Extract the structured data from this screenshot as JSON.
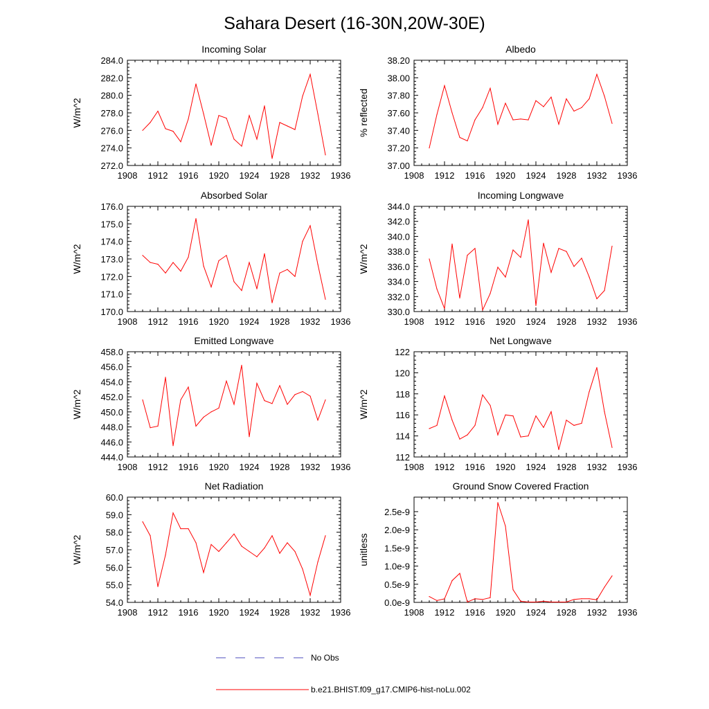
{
  "title": "Sahara Desert (16-30N,20W-30E)",
  "legend": {
    "entries": [
      {
        "label": "No Obs",
        "color": "#4b4bbd",
        "style": "dashed"
      },
      {
        "label": "b.e21.BHIST.f09_g17.CMIP6-hist-noLu.002",
        "color": "#ff0000",
        "style": "solid"
      }
    ]
  },
  "chart_data": [
    {
      "type": "line",
      "title": "Incoming Solar",
      "ylabel": "W/m^2",
      "xlim": [
        1908,
        1936
      ],
      "ylim": [
        272,
        284
      ],
      "xticks": [
        "1908",
        "1912",
        "1916",
        "1920",
        "1924",
        "1928",
        "1932",
        "1936"
      ],
      "yticks": [
        "272.0",
        "274.0",
        "276.0",
        "278.0",
        "280.0",
        "282.0",
        "284.0"
      ],
      "series": [
        {
          "color": "#ff0000",
          "x": [
            1910,
            1911,
            1912,
            1913,
            1914,
            1915,
            1916,
            1917,
            1918,
            1919,
            1920,
            1921,
            1922,
            1923,
            1924,
            1925,
            1926,
            1927,
            1928,
            1929,
            1930,
            1931,
            1932,
            1933,
            1934
          ],
          "y": [
            276.0,
            276.9,
            278.2,
            276.2,
            275.9,
            274.7,
            277.3,
            281.3,
            277.9,
            274.3,
            277.7,
            277.4,
            275.0,
            274.2,
            277.7,
            275.0,
            278.8,
            272.8,
            276.9,
            276.5,
            276.1,
            279.9,
            282.4,
            277.9,
            273.2
          ]
        }
      ]
    },
    {
      "type": "line",
      "title": "Albedo",
      "ylabel": "% reflected",
      "xlim": [
        1908,
        1936
      ],
      "ylim": [
        37.0,
        38.2
      ],
      "xticks": [
        "1908",
        "1912",
        "1916",
        "1920",
        "1924",
        "1928",
        "1932",
        "1936"
      ],
      "yticks": [
        "37.00",
        "37.20",
        "37.40",
        "37.60",
        "37.80",
        "38.00",
        "38.20"
      ],
      "series": [
        {
          "color": "#ff0000",
          "x": [
            1910,
            1911,
            1912,
            1913,
            1914,
            1915,
            1916,
            1917,
            1918,
            1919,
            1920,
            1921,
            1922,
            1923,
            1924,
            1925,
            1926,
            1927,
            1928,
            1929,
            1930,
            1931,
            1932,
            1933,
            1934
          ],
          "y": [
            37.2,
            37.58,
            37.91,
            37.6,
            37.32,
            37.28,
            37.52,
            37.66,
            37.88,
            37.47,
            37.71,
            37.52,
            37.53,
            37.52,
            37.74,
            37.67,
            37.78,
            37.47,
            37.76,
            37.62,
            37.66,
            37.76,
            38.04,
            37.79,
            37.48
          ]
        }
      ]
    },
    {
      "type": "line",
      "title": "Absorbed Solar",
      "ylabel": "W/m^2",
      "xlim": [
        1908,
        1936
      ],
      "ylim": [
        170,
        176
      ],
      "xticks": [
        "1908",
        "1912",
        "1916",
        "1920",
        "1924",
        "1928",
        "1932",
        "1936"
      ],
      "yticks": [
        "170.0",
        "171.0",
        "172.0",
        "173.0",
        "174.0",
        "175.0",
        "176.0"
      ],
      "series": [
        {
          "color": "#ff0000",
          "x": [
            1910,
            1911,
            1912,
            1913,
            1914,
            1915,
            1916,
            1917,
            1918,
            1919,
            1920,
            1921,
            1922,
            1923,
            1924,
            1925,
            1926,
            1927,
            1928,
            1929,
            1930,
            1931,
            1932,
            1933,
            1934
          ],
          "y": [
            173.2,
            172.8,
            172.7,
            172.2,
            172.8,
            172.3,
            173.1,
            175.3,
            172.6,
            171.4,
            172.9,
            173.2,
            171.7,
            171.2,
            172.8,
            171.3,
            173.3,
            170.5,
            172.2,
            172.4,
            172.0,
            174.0,
            174.9,
            172.7,
            170.7
          ]
        }
      ]
    },
    {
      "type": "line",
      "title": "Incoming Longwave",
      "ylabel": "W/m^2",
      "xlim": [
        1908,
        1936
      ],
      "ylim": [
        330,
        344
      ],
      "xticks": [
        "1908",
        "1912",
        "1916",
        "1920",
        "1924",
        "1928",
        "1932",
        "1936"
      ],
      "yticks": [
        "330.0",
        "332.0",
        "334.0",
        "336.0",
        "338.0",
        "340.0",
        "342.0",
        "344.0"
      ],
      "series": [
        {
          "color": "#ff0000",
          "x": [
            1910,
            1911,
            1912,
            1913,
            1914,
            1915,
            1916,
            1917,
            1918,
            1919,
            1920,
            1921,
            1922,
            1923,
            1924,
            1925,
            1926,
            1927,
            1928,
            1929,
            1930,
            1931,
            1932,
            1933,
            1934
          ],
          "y": [
            337.0,
            333.0,
            330.4,
            339.0,
            331.8,
            337.5,
            338.4,
            330.2,
            332.4,
            335.9,
            334.6,
            338.2,
            337.2,
            342.2,
            330.8,
            339.1,
            335.2,
            338.4,
            338.0,
            336.0,
            337.1,
            334.6,
            331.7,
            332.8,
            338.7
          ]
        }
      ]
    },
    {
      "type": "line",
      "title": "Emitted Longwave",
      "ylabel": "W/m^2",
      "xlim": [
        1908,
        1936
      ],
      "ylim": [
        444,
        458
      ],
      "xticks": [
        "1908",
        "1912",
        "1916",
        "1920",
        "1924",
        "1928",
        "1932",
        "1936"
      ],
      "yticks": [
        "444.0",
        "446.0",
        "448.0",
        "450.0",
        "452.0",
        "454.0",
        "456.0",
        "458.0"
      ],
      "series": [
        {
          "color": "#ff0000",
          "x": [
            1910,
            1911,
            1912,
            1913,
            1914,
            1915,
            1916,
            1917,
            1918,
            1919,
            1920,
            1921,
            1922,
            1923,
            1924,
            1925,
            1926,
            1927,
            1928,
            1929,
            1930,
            1931,
            1932,
            1933,
            1934
          ],
          "y": [
            451.6,
            447.9,
            448.1,
            454.6,
            445.5,
            451.6,
            453.3,
            448.1,
            449.3,
            450.0,
            450.5,
            454.1,
            451.0,
            456.2,
            446.7,
            453.8,
            451.5,
            451.1,
            453.5,
            451.0,
            452.3,
            452.7,
            452.1,
            448.9,
            451.6
          ]
        }
      ]
    },
    {
      "type": "line",
      "title": "Net Longwave",
      "ylabel": "W/m^2",
      "xlim": [
        1908,
        1936
      ],
      "ylim": [
        112,
        122
      ],
      "xticks": [
        "1908",
        "1912",
        "1916",
        "1920",
        "1924",
        "1928",
        "1932",
        "1936"
      ],
      "yticks": [
        "112",
        "114",
        "116",
        "118",
        "120",
        "122"
      ],
      "series": [
        {
          "color": "#ff0000",
          "x": [
            1910,
            1911,
            1912,
            1913,
            1914,
            1915,
            1916,
            1917,
            1918,
            1919,
            1920,
            1921,
            1922,
            1923,
            1924,
            1925,
            1926,
            1927,
            1928,
            1929,
            1930,
            1931,
            1932,
            1933,
            1934
          ],
          "y": [
            114.7,
            115.0,
            117.8,
            115.5,
            113.7,
            114.1,
            115.0,
            117.9,
            116.9,
            114.1,
            116.0,
            115.9,
            113.9,
            114.0,
            115.9,
            114.8,
            116.3,
            112.7,
            115.5,
            115.0,
            115.2,
            118.2,
            120.5,
            116.3,
            112.9
          ]
        }
      ]
    },
    {
      "type": "line",
      "title": "Net Radiation",
      "ylabel": "W/m^2",
      "xlim": [
        1908,
        1936
      ],
      "ylim": [
        54,
        60
      ],
      "xticks": [
        "1908",
        "1912",
        "1916",
        "1920",
        "1924",
        "1928",
        "1932",
        "1936"
      ],
      "yticks": [
        "54.0",
        "55.0",
        "56.0",
        "57.0",
        "58.0",
        "59.0",
        "60.0"
      ],
      "series": [
        {
          "color": "#ff0000",
          "x": [
            1910,
            1911,
            1912,
            1913,
            1914,
            1915,
            1916,
            1917,
            1918,
            1919,
            1920,
            1921,
            1922,
            1923,
            1924,
            1925,
            1926,
            1927,
            1928,
            1929,
            1930,
            1931,
            1932,
            1933,
            1934
          ],
          "y": [
            58.6,
            57.8,
            54.9,
            56.7,
            59.1,
            58.2,
            58.2,
            57.4,
            55.7,
            57.3,
            56.9,
            57.4,
            57.9,
            57.2,
            56.9,
            56.6,
            57.1,
            57.8,
            56.8,
            57.4,
            56.9,
            55.9,
            54.4,
            56.3,
            57.8
          ]
        }
      ]
    },
    {
      "type": "line",
      "title": "Ground Snow Covered Fraction",
      "ylabel": "unitless",
      "xlim": [
        1908,
        1936
      ],
      "ylim": [
        0,
        2.9e-09
      ],
      "xticks": [
        "1908",
        "1912",
        "1916",
        "1920",
        "1924",
        "1928",
        "1932",
        "1936"
      ],
      "ytick_values": [
        0,
        5e-10,
        1e-09,
        1.5e-09,
        2e-09,
        2.5e-09
      ],
      "yticks": [
        "0.0e-9",
        "0.5e-9",
        "1.0e-9",
        "1.5e-9",
        "2.0e-9",
        "2.5e-9"
      ],
      "series": [
        {
          "color": "#ff0000",
          "x": [
            1910,
            1911,
            1912,
            1913,
            1914,
            1915,
            1916,
            1917,
            1918,
            1919,
            1920,
            1921,
            1922,
            1923,
            1924,
            1925,
            1926,
            1927,
            1928,
            1929,
            1930,
            1931,
            1932,
            1933,
            1934
          ],
          "y": [
            1.6e-10,
            5e-11,
            1e-10,
            6e-10,
            8e-10,
            1e-11,
            1e-10,
            8e-11,
            1.3e-10,
            2.75e-09,
            2.1e-09,
            3.5e-10,
            3e-11,
            1e-11,
            1e-11,
            3e-11,
            1e-11,
            1e-11,
            1e-11,
            8e-11,
            1e-10,
            1e-10,
            7e-11,
            4.2e-10,
            7.3e-10
          ]
        }
      ]
    }
  ]
}
